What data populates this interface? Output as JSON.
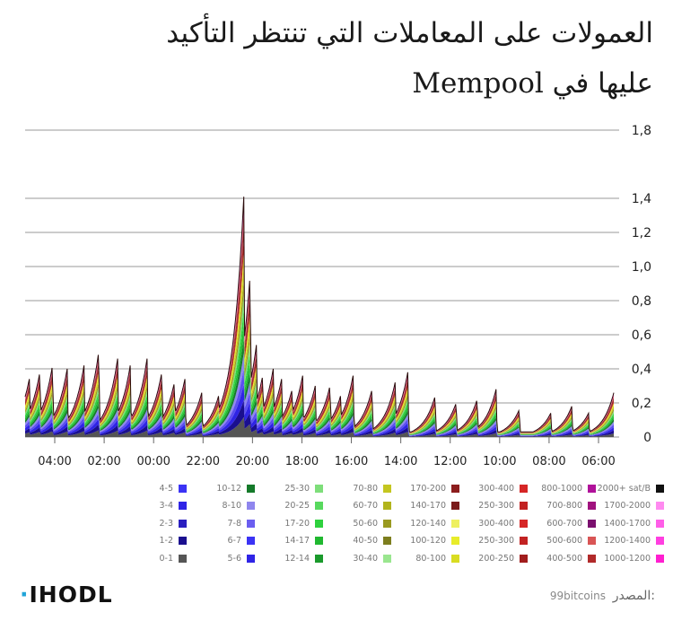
{
  "title": {
    "line1": "العمولات على المعاملات التي تنتظر التأكيد",
    "line2": "عليها في Mempool"
  },
  "chart_data": {
    "type": "area",
    "stacked": true,
    "x_ticks": [
      "04:00",
      "02:00",
      "00:00",
      "22:00",
      "20:00",
      "18:00",
      "16:00",
      "14:00",
      "12:00",
      "10:00",
      "08:00",
      "06:00"
    ],
    "y_ticks": [
      "0",
      "0,2",
      "0,4",
      "0,6",
      "0,8",
      "1,0",
      "1,2",
      "1,4",
      "1,8"
    ],
    "y_tick_values": [
      0,
      0.2,
      0.4,
      0.6,
      0.8,
      1.0,
      1.2,
      1.4,
      1.8
    ],
    "ylim": [
      0,
      1.8
    ],
    "y_axis_side": "right",
    "grid": true,
    "x_range_hours": [
      5,
      33
    ],
    "total_peaks": [
      [
        5.0,
        0.26
      ],
      [
        6.2,
        0.14
      ],
      [
        7.0,
        0.18
      ],
      [
        8.0,
        0.14
      ],
      [
        9.5,
        0.16
      ],
      [
        10.6,
        0.28
      ],
      [
        11.5,
        0.22
      ],
      [
        12.5,
        0.2
      ],
      [
        13.5,
        0.24
      ],
      [
        14.8,
        0.38
      ],
      [
        15.4,
        0.32
      ],
      [
        16.5,
        0.28
      ],
      [
        17.4,
        0.36
      ],
      [
        18.0,
        0.24
      ],
      [
        18.5,
        0.3
      ],
      [
        19.2,
        0.3
      ],
      [
        19.8,
        0.36
      ],
      [
        20.3,
        0.28
      ],
      [
        20.8,
        0.34
      ],
      [
        21.2,
        0.4
      ],
      [
        21.7,
        0.36
      ],
      [
        22.0,
        0.54
      ],
      [
        22.3,
        0.95
      ],
      [
        22.6,
        1.41
      ],
      [
        23.2,
        0.3
      ],
      [
        23.8,
        0.24
      ],
      [
        24.6,
        0.26
      ],
      [
        25.4,
        0.34
      ],
      [
        25.9,
        0.32
      ],
      [
        26.5,
        0.38
      ],
      [
        27.2,
        0.46
      ],
      [
        28.0,
        0.42
      ],
      [
        28.6,
        0.46
      ],
      [
        29.5,
        0.5
      ],
      [
        30.2,
        0.42
      ],
      [
        31.0,
        0.4
      ],
      [
        31.7,
        0.42
      ],
      [
        32.3,
        0.38
      ],
      [
        32.8,
        0.34
      ]
    ],
    "legend": {
      "unit": "sat/B",
      "columns": [
        [
          {
            "label": "0-1",
            "color": "#555555"
          },
          {
            "label": "1-2",
            "color": "#1a0f8f"
          },
          {
            "label": "2-3",
            "color": "#2a1fc0"
          },
          {
            "label": "3-4",
            "color": "#2f24e6"
          },
          {
            "label": "4-5",
            "color": "#3b33f5"
          }
        ],
        [
          {
            "label": "5-6",
            "color": "#2f24e6"
          },
          {
            "label": "6-7",
            "color": "#3b33f5"
          },
          {
            "label": "7-8",
            "color": "#6b5ef0"
          },
          {
            "label": "8-10",
            "color": "#8f86ee"
          },
          {
            "label": "10-12",
            "color": "#157a2a"
          }
        ],
        [
          {
            "label": "12-14",
            "color": "#1a9a2c"
          },
          {
            "label": "14-17",
            "color": "#20b830"
          },
          {
            "label": "17-20",
            "color": "#2ed13e"
          },
          {
            "label": "20-25",
            "color": "#58d95e"
          },
          {
            "label": "25-30",
            "color": "#7ede7a"
          }
        ],
        [
          {
            "label": "30-40",
            "color": "#9ae68f"
          },
          {
            "label": "40-50",
            "color": "#7d7e1e"
          },
          {
            "label": "50-60",
            "color": "#9a9a20"
          },
          {
            "label": "60-70",
            "color": "#b2b41c"
          },
          {
            "label": "70-80",
            "color": "#c4c620"
          }
        ],
        [
          {
            "label": "80-100",
            "color": "#d9dc22"
          },
          {
            "label": "100-120",
            "color": "#e8ec2a"
          },
          {
            "label": "120-140",
            "color": "#eef060"
          },
          {
            "label": "140-170",
            "color": "#7a1a1a"
          },
          {
            "label": "170-200",
            "color": "#8c1d1d"
          }
        ],
        [
          {
            "label": "200-250",
            "color": "#a11d1d"
          },
          {
            "label": "250-300",
            "color": "#c22222"
          },
          {
            "label": "300-400",
            "color": "#d62626"
          },
          {
            "label": "250-300",
            "color": "#c22222"
          },
          {
            "label": "300-400",
            "color": "#d62626"
          }
        ],
        [
          {
            "label": "400-500",
            "color": "#b12a2a"
          },
          {
            "label": "500-600",
            "color": "#d95555"
          },
          {
            "label": "600-700",
            "color": "#7a0f6e"
          },
          {
            "label": "700-800",
            "color": "#a0127e"
          },
          {
            "label": "800-1000",
            "color": "#b0119a"
          }
        ],
        [
          {
            "label": "1000-1200",
            "color": "#ff1fd0"
          },
          {
            "label": "1200-1400",
            "color": "#ff3fe0"
          },
          {
            "label": "1400-1700",
            "color": "#ff5ee8"
          },
          {
            "label": "1700-2000",
            "color": "#ff8af0"
          },
          {
            "label": "2000+ sat/B",
            "color": "#111111"
          }
        ]
      ]
    },
    "layer_colors": [
      "#555555",
      "#1a0f8f",
      "#2f24e6",
      "#5b4ff0",
      "#8f86ee",
      "#157a2a",
      "#20b830",
      "#2ed13e",
      "#7ede7a",
      "#9a9a20",
      "#c4c620",
      "#e8ec2a",
      "#c22222",
      "#7a1a1a",
      "#d95555",
      "#ff5ee8"
    ]
  },
  "footer": {
    "brand": "IHODL",
    "source_label": "المصدر:",
    "source_value": "99bitcoins"
  }
}
